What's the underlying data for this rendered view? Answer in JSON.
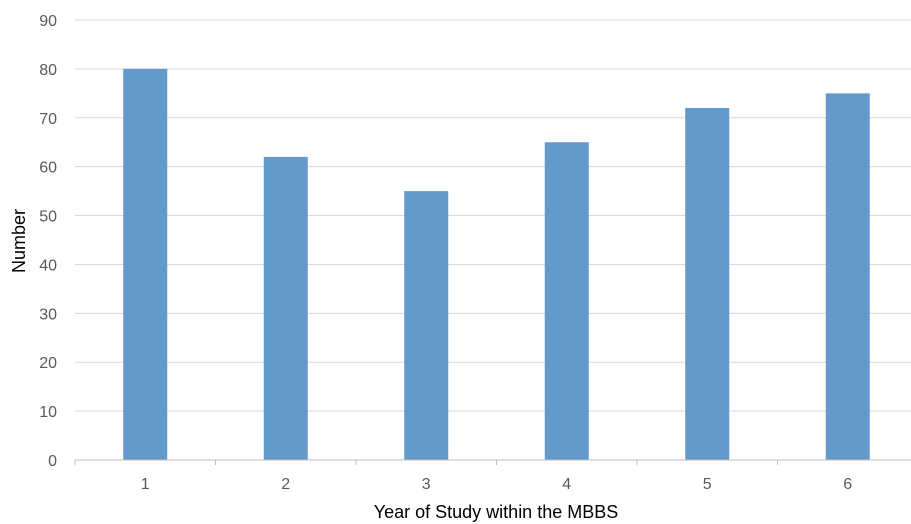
{
  "chart_data": {
    "type": "bar",
    "title": "",
    "xlabel": "Year of Study within the MBBS",
    "ylabel": "Number",
    "categories": [
      "1",
      "2",
      "3",
      "4",
      "5",
      "6"
    ],
    "values": [
      80,
      62,
      55,
      65,
      72,
      75
    ],
    "ylim": [
      0,
      90
    ],
    "yticks": [
      "0",
      "10",
      "20",
      "30",
      "40",
      "50",
      "60",
      "70",
      "80",
      "90"
    ],
    "grid": true,
    "legend": "none",
    "colors": {
      "bar": "#6399cb",
      "grid": "#d9d9d9",
      "axis": "#bfbfbf"
    }
  }
}
